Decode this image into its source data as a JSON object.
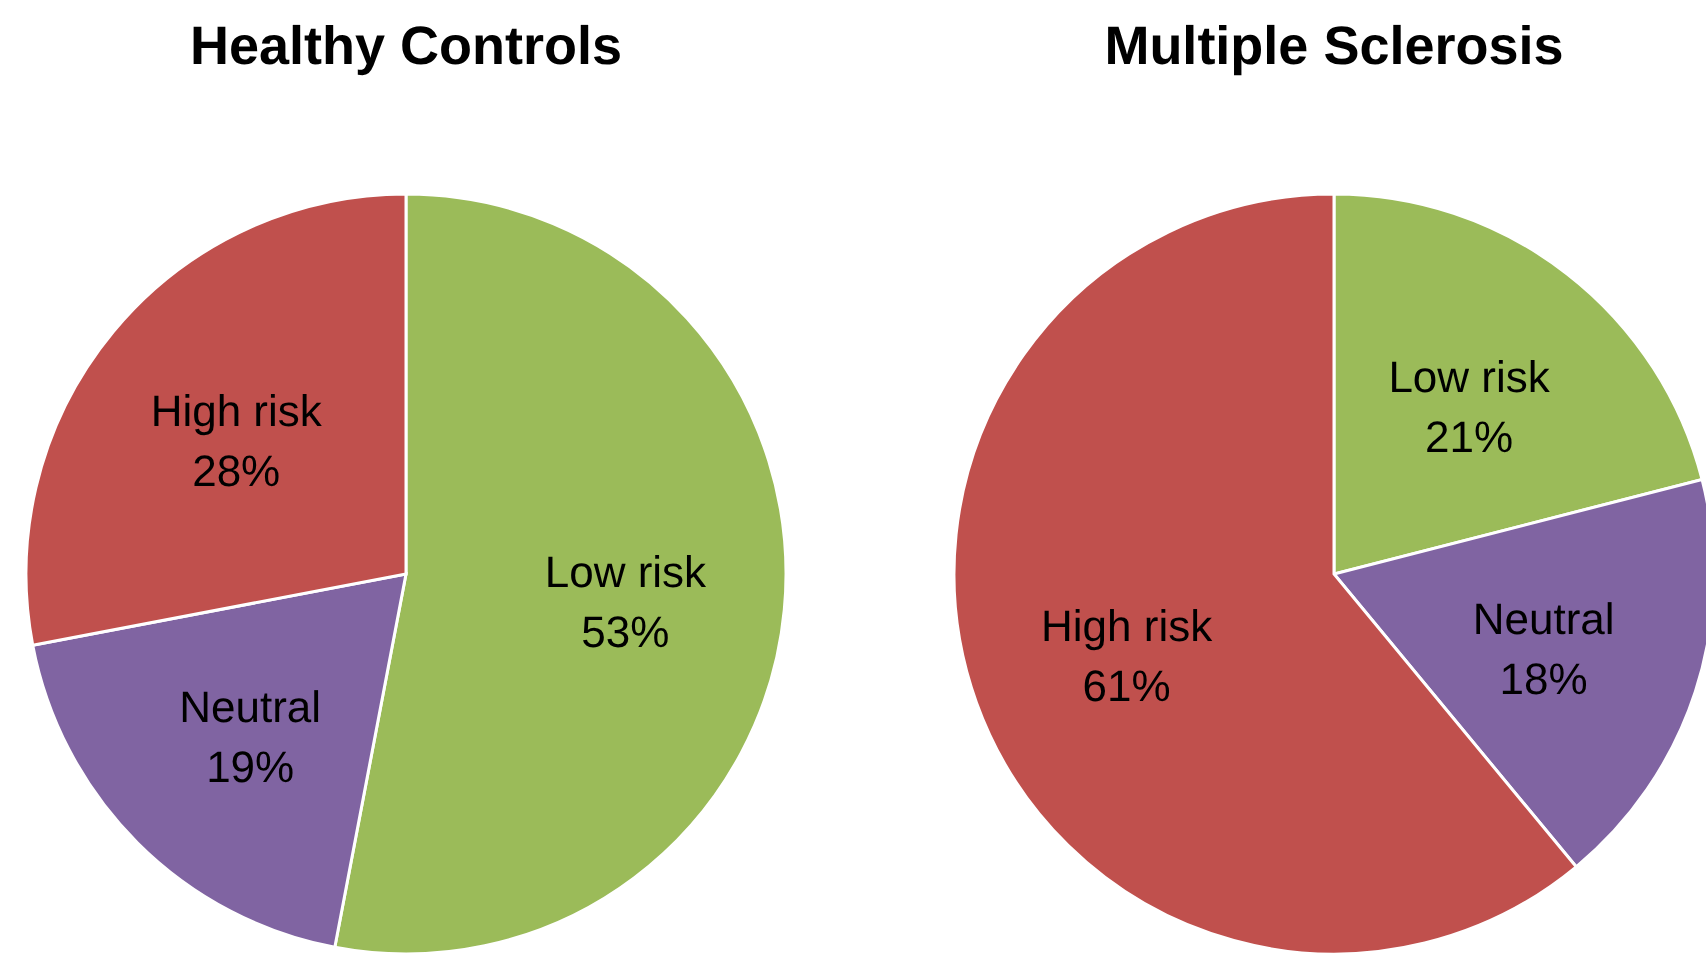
{
  "chart_data": [
    {
      "type": "pie",
      "title": "Healthy Controls",
      "categories": [
        "Low risk",
        "Neutral",
        "High risk"
      ],
      "values": [
        53,
        19,
        28
      ],
      "value_labels": [
        "53%",
        "19%",
        "28%"
      ],
      "colors": [
        "#9bbb59",
        "#8064a2",
        "#c0504d"
      ]
    },
    {
      "type": "pie",
      "title": "Multiple Sclerosis",
      "categories": [
        "Low risk",
        "Neutral",
        "High risk"
      ],
      "values": [
        21,
        18,
        61
      ],
      "value_labels": [
        "21%",
        "18%",
        "61%"
      ],
      "colors": [
        "#9bbb59",
        "#8064a2",
        "#c0504d"
      ]
    }
  ]
}
